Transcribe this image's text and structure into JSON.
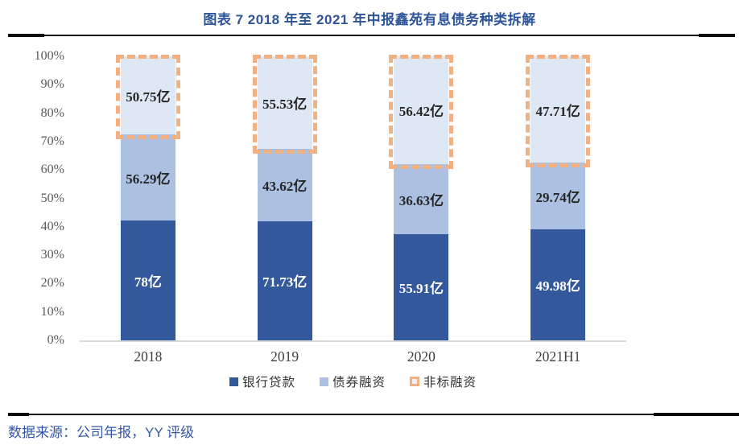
{
  "title": "图表 7 2018 年至 2021 年中报鑫苑有息债务种类拆解",
  "source": "数据来源：公司年报，YY 评级",
  "colors": {
    "title_blue": "#2E5597",
    "source_blue": "#3458A8",
    "bank_bar": "#33599C",
    "bond_bar": "#ACC0E2",
    "nonstd_fill": "#DEE8F4",
    "nonstd_dash": "#F2B183",
    "axis_label_gray": "#595959",
    "axis_line_gray": "#D9D9D9"
  },
  "chart_data": {
    "type": "bar",
    "subtype": "stacked-100-percent",
    "title": "图表 7 2018 年至 2021 年中报鑫苑有息债务种类拆解",
    "categories": [
      "2018",
      "2019",
      "2020",
      "2021H1"
    ],
    "series": [
      {
        "name": "银行贷款",
        "key": "bank",
        "values": [
          78,
          71.73,
          55.91,
          49.98
        ],
        "labels": [
          "78亿",
          "71.73亿",
          "55.91亿",
          "49.98亿"
        ]
      },
      {
        "name": "债券融资",
        "key": "bond",
        "values": [
          56.29,
          43.62,
          36.63,
          29.74
        ],
        "labels": [
          "56.29亿",
          "43.62亿",
          "36.63亿",
          "29.74亿"
        ]
      },
      {
        "name": "非标融资",
        "key": "nonstd",
        "values": [
          50.75,
          55.53,
          56.42,
          47.71
        ],
        "labels": [
          "50.75亿",
          "55.53亿",
          "56.42亿",
          "47.71亿"
        ]
      }
    ],
    "unit": "亿",
    "ylabel": "",
    "xlabel": "",
    "ylim": [
      0,
      100
    ],
    "y_ticks": [
      "0%",
      "10%",
      "20%",
      "30%",
      "40%",
      "50%",
      "60%",
      "70%",
      "80%",
      "90%",
      "100%"
    ],
    "grid": false,
    "legend": [
      "银行贷款",
      "债券融资",
      "非标融资"
    ],
    "legend_position": "bottom"
  }
}
